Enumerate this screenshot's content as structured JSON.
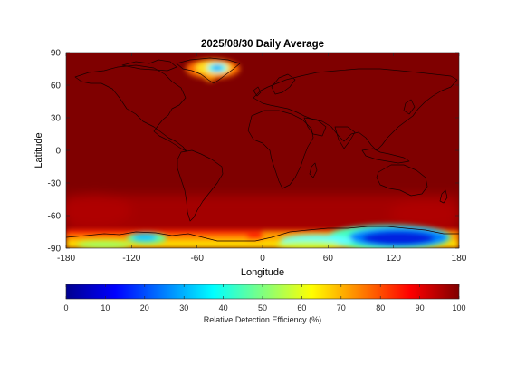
{
  "chart_data": {
    "type": "heatmap",
    "title": "2025/08/30 Daily Average",
    "xlabel": "Longitude",
    "ylabel": "Latitude",
    "xlim": [
      -180,
      180
    ],
    "ylim": [
      -90,
      90
    ],
    "x_ticks": [
      -180,
      -120,
      -60,
      0,
      60,
      120,
      180
    ],
    "y_ticks": [
      90,
      60,
      30,
      0,
      -30,
      -60,
      -90
    ],
    "colorbar": {
      "label": "Relative Detection Efficiency (%)",
      "range": [
        0,
        100
      ],
      "ticks": [
        0,
        10,
        20,
        30,
        40,
        50,
        60,
        70,
        80,
        90,
        100
      ],
      "colormap": "jet"
    },
    "background_value": 99,
    "regions": [
      {
        "name": "Greenland interior",
        "lon_range": [
          -50,
          -25
        ],
        "lat_range": [
          65,
          80
        ],
        "value": 35
      },
      {
        "name": "Greenland margin",
        "lon_range": [
          -65,
          -20
        ],
        "lat_range": [
          60,
          83
        ],
        "value": 75
      },
      {
        "name": "West Antarctica (Marie Byrd Land)",
        "lon_range": [
          -125,
          -100
        ],
        "lat_range": [
          -85,
          -77
        ],
        "value": 40
      },
      {
        "name": "East Antarctic plateau",
        "lon_range": [
          85,
          150
        ],
        "lat_range": [
          -90,
          -73
        ],
        "value": 12
      },
      {
        "name": "East Antarctica fringe",
        "lon_range": [
          0,
          165
        ],
        "lat_range": [
          -90,
          -70
        ],
        "value": 60
      },
      {
        "name": "Antarctic coast",
        "lon_range": [
          -180,
          180
        ],
        "lat_range": [
          -90,
          -74
        ],
        "value": 78
      },
      {
        "name": "Southern Ocean band",
        "lon_range": [
          -180,
          180
        ],
        "lat_range": [
          -74,
          -40
        ],
        "value": 92
      }
    ]
  }
}
